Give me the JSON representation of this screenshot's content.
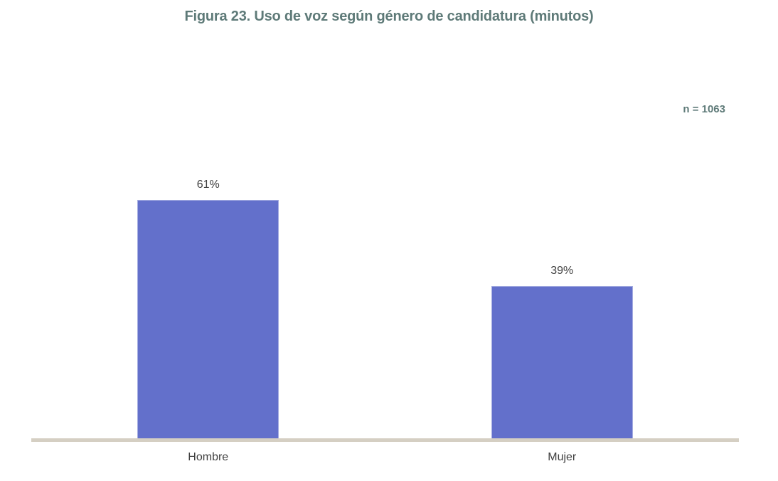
{
  "title": "Figura 23. Uso de voz según género de candidatura (minutos)",
  "annotation": "n = 1063",
  "colors": {
    "title_text": "#5e7a78",
    "annotation_text": "#5e7a78",
    "bar": "#6370cb",
    "bar_border": "#a3abe0",
    "axis_line": "#d5cfc3",
    "label_text": "#3f3f3f",
    "background": "#ffffff"
  },
  "chart_data": {
    "type": "bar",
    "title": "Figura 23. Uso de voz según género de candidatura (minutos)",
    "annotation": "n = 1063",
    "categories": [
      "Hombre",
      "Mujer"
    ],
    "values": [
      61,
      39
    ],
    "value_labels": [
      "61%",
      "39%"
    ],
    "xlabel": "",
    "ylabel": "",
    "ylim": [
      0,
      100
    ],
    "unit": "percent",
    "grid": false,
    "legend": false,
    "bar_color": "#6370cb"
  }
}
